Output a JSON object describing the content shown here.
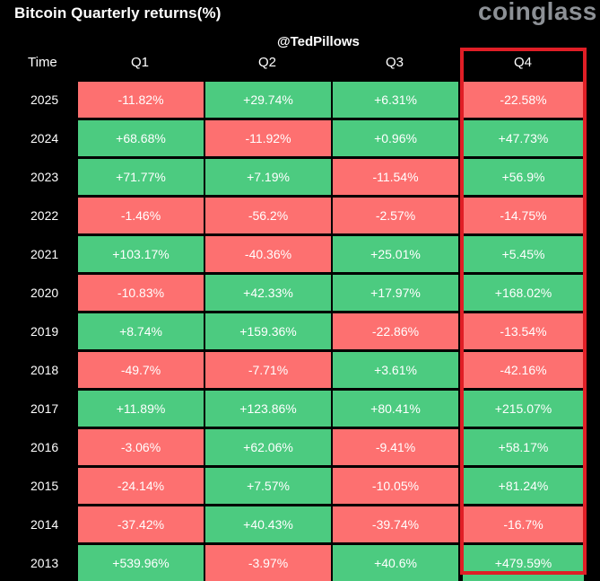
{
  "title": "Bitcoin Quarterly returns(%)",
  "brand": "coinglass",
  "watermark": "@TedPillows",
  "colors": {
    "background": "#000000",
    "positive": "#4ccb80",
    "negative": "#fd7070",
    "highlight_border": "#e01e26",
    "brand_text": "#8d9196"
  },
  "chart_data": {
    "type": "table",
    "title": "Bitcoin Quarterly returns(%)",
    "row_header": "Time",
    "columns": [
      "Q1",
      "Q2",
      "Q3",
      "Q4"
    ],
    "highlighted_column": "Q4",
    "rows": [
      {
        "year": "2025",
        "values": [
          "-11.82%",
          "+29.74%",
          "+6.31%",
          "-22.58%"
        ]
      },
      {
        "year": "2024",
        "values": [
          "+68.68%",
          "-11.92%",
          "+0.96%",
          "+47.73%"
        ]
      },
      {
        "year": "2023",
        "values": [
          "+71.77%",
          "+7.19%",
          "-11.54%",
          "+56.9%"
        ]
      },
      {
        "year": "2022",
        "values": [
          "-1.46%",
          "-56.2%",
          "-2.57%",
          "-14.75%"
        ]
      },
      {
        "year": "2021",
        "values": [
          "+103.17%",
          "-40.36%",
          "+25.01%",
          "+5.45%"
        ]
      },
      {
        "year": "2020",
        "values": [
          "-10.83%",
          "+42.33%",
          "+17.97%",
          "+168.02%"
        ]
      },
      {
        "year": "2019",
        "values": [
          "+8.74%",
          "+159.36%",
          "-22.86%",
          "-13.54%"
        ]
      },
      {
        "year": "2018",
        "values": [
          "-49.7%",
          "-7.71%",
          "+3.61%",
          "-42.16%"
        ]
      },
      {
        "year": "2017",
        "values": [
          "+11.89%",
          "+123.86%",
          "+80.41%",
          "+215.07%"
        ]
      },
      {
        "year": "2016",
        "values": [
          "-3.06%",
          "+62.06%",
          "-9.41%",
          "+58.17%"
        ]
      },
      {
        "year": "2015",
        "values": [
          "-24.14%",
          "+7.57%",
          "-10.05%",
          "+81.24%"
        ]
      },
      {
        "year": "2014",
        "values": [
          "-37.42%",
          "+40.43%",
          "-39.74%",
          "-16.7%"
        ]
      },
      {
        "year": "2013",
        "values": [
          "+539.96%",
          "-3.97%",
          "+40.6%",
          "+479.59%"
        ]
      }
    ]
  }
}
